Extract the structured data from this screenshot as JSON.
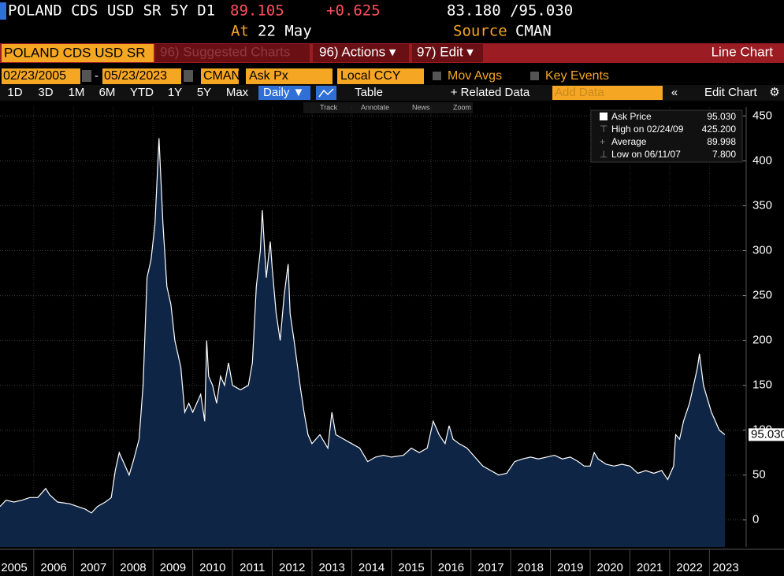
{
  "header": {
    "security": "POLAND CDS USD SR 5Y D1",
    "last": "89.105",
    "change": "+0.625",
    "range": "83.180 /95.030",
    "at_label": "At",
    "date": "22 May",
    "source_label": "Source",
    "source": "CMAN"
  },
  "toolbar": {
    "ticker": "POLAND CDS USD SR",
    "suggested": "96) Suggested Charts",
    "actions": "96) Actions ▾",
    "edit": "97) Edit ▾",
    "view": "Line Chart"
  },
  "settings": {
    "start": "02/23/2005",
    "end": "05/23/2023",
    "source": "CMAN",
    "field": "Ask Px",
    "currency": "Local CCY",
    "mov_avgs": "Mov Avgs",
    "key_events": "Key Events"
  },
  "periods": [
    "1D",
    "3D",
    "1M",
    "6M",
    "YTD",
    "1Y",
    "5Y",
    "Max"
  ],
  "controls": {
    "frequency": "Daily ▼",
    "table": "Table",
    "related": "+ Related Data",
    "add": "Add Data",
    "edit_chart": "Edit Chart"
  },
  "tools": [
    "Track",
    "Annotate",
    "News",
    "Zoom"
  ],
  "legend": [
    {
      "value": "95.030"
    },
    {
      "label": "High on 02/24/09",
      "value": "425.200"
    },
    {
      "label": "Average",
      "value": "89.998"
    },
    {
      "label": "Low on 06/11/07",
      "value": "7.800"
    }
  ],
  "chart_data": {
    "type": "area",
    "x": [
      2005.15,
      2005.3,
      2005.5,
      2005.7,
      2005.9,
      2006.1,
      2006.3,
      2006.4,
      2006.6,
      2006.9,
      2007.1,
      2007.3,
      2007.45,
      2007.6,
      2007.8,
      2007.95,
      2008.05,
      2008.15,
      2008.3,
      2008.4,
      2008.5,
      2008.65,
      2008.75,
      2008.85,
      2008.95,
      2009.05,
      2009.15,
      2009.25,
      2009.35,
      2009.45,
      2009.55,
      2009.7,
      2009.8,
      2009.9,
      2010.0,
      2010.1,
      2010.2,
      2010.3,
      2010.35,
      2010.4,
      2010.5,
      2010.6,
      2010.7,
      2010.8,
      2010.9,
      2011.0,
      2011.2,
      2011.4,
      2011.5,
      2011.6,
      2011.7,
      2011.75,
      2011.85,
      2011.95,
      2012.0,
      2012.1,
      2012.2,
      2012.3,
      2012.4,
      2012.45,
      2012.55,
      2012.7,
      2012.8,
      2012.9,
      2013.0,
      2013.2,
      2013.4,
      2013.5,
      2013.6,
      2013.8,
      2014.0,
      2014.2,
      2014.4,
      2014.6,
      2014.8,
      2015.0,
      2015.3,
      2015.5,
      2015.7,
      2015.9,
      2016.05,
      2016.2,
      2016.35,
      2016.45,
      2016.55,
      2016.7,
      2016.9,
      2017.1,
      2017.3,
      2017.5,
      2017.7,
      2017.9,
      2018.1,
      2018.3,
      2018.5,
      2018.7,
      2018.9,
      2019.1,
      2019.3,
      2019.5,
      2019.7,
      2019.85,
      2020.0,
      2020.1,
      2020.2,
      2020.4,
      2020.6,
      2020.8,
      2021.0,
      2021.2,
      2021.4,
      2021.6,
      2021.8,
      2021.95,
      2022.1,
      2022.15,
      2022.25,
      2022.35,
      2022.5,
      2022.6,
      2022.7,
      2022.75,
      2022.85,
      2022.95,
      2023.05,
      2023.15,
      2023.25,
      2023.39
    ],
    "series": [
      {
        "name": "Ask Price",
        "color": "#ffffff",
        "fill": "#0e2546",
        "values": [
          15,
          22,
          20,
          22,
          25,
          25,
          35,
          28,
          20,
          18,
          15,
          12,
          7.8,
          15,
          20,
          25,
          55,
          75,
          60,
          50,
          65,
          90,
          150,
          270,
          290,
          330,
          425.2,
          330,
          260,
          240,
          200,
          170,
          120,
          130,
          120,
          130,
          140,
          110,
          200,
          160,
          150,
          130,
          160,
          150,
          175,
          150,
          145,
          150,
          175,
          260,
          300,
          345,
          270,
          310,
          280,
          230,
          200,
          250,
          285,
          230,
          200,
          150,
          120,
          95,
          85,
          95,
          80,
          120,
          95,
          90,
          85,
          80,
          65,
          70,
          72,
          70,
          72,
          80,
          75,
          80,
          110,
          95,
          85,
          105,
          90,
          85,
          80,
          70,
          60,
          55,
          50,
          52,
          65,
          68,
          70,
          68,
          70,
          72,
          68,
          70,
          65,
          60,
          60,
          75,
          68,
          62,
          60,
          62,
          60,
          52,
          55,
          52,
          55,
          45,
          60,
          95,
          90,
          110,
          130,
          150,
          170,
          185,
          150,
          135,
          120,
          110,
          100,
          95.03
        ]
      }
    ],
    "xlim": [
      2005.15,
      2023.39
    ],
    "xticks": [
      2005,
      2006,
      2007,
      2008,
      2009,
      2010,
      2011,
      2012,
      2013,
      2014,
      2015,
      2016,
      2017,
      2018,
      2019,
      2020,
      2021,
      2022,
      2023
    ],
    "ylim": [
      -30,
      460
    ],
    "yticks": [
      0,
      50,
      100,
      150,
      200,
      250,
      300,
      350,
      400,
      450
    ],
    "grid": true,
    "last_label": "95.030"
  }
}
